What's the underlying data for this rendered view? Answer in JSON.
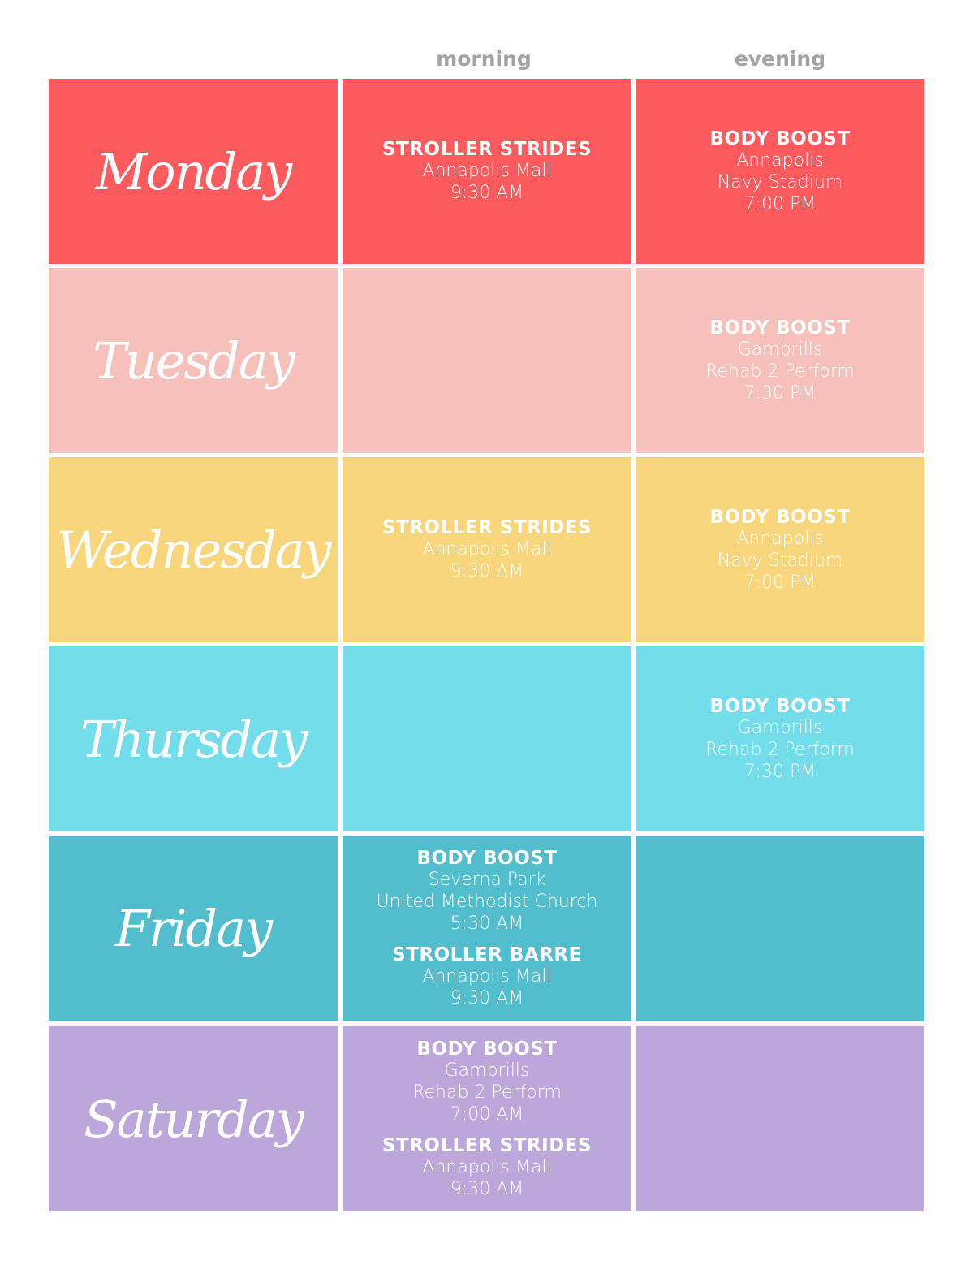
{
  "headers": {
    "morning": "morning",
    "evening": "evening"
  },
  "rows": [
    {
      "day": "Monday",
      "color": "#FF5A5E",
      "morning": [
        {
          "title": "STROLLER STRIDES",
          "lines": [
            "Annapolis Mall",
            "9:30 AM"
          ]
        }
      ],
      "evening": [
        {
          "title": "BODY BOOST",
          "lines": [
            "Annapolis",
            "Navy Stadium",
            "7:00 PM"
          ]
        }
      ]
    },
    {
      "day": "Tuesday",
      "color": "#F6C1BA",
      "morning": [],
      "evening": [
        {
          "title": "BODY BOOST",
          "lines": [
            "Gambrills",
            "Rehab 2 Perform",
            "7:30 PM"
          ]
        }
      ]
    },
    {
      "day": "Wednesday",
      "color": "#F9D67C",
      "morning": [
        {
          "title": "STROLLER STRIDES",
          "lines": [
            "Annapolis Mall",
            "9:30 AM"
          ]
        }
      ],
      "evening": [
        {
          "title": "BODY BOOST",
          "lines": [
            "Annapolis",
            "Navy Stadium",
            "7:00 PM"
          ]
        }
      ]
    },
    {
      "day": "Thursday",
      "color": "#74DDEC",
      "morning": [],
      "evening": [
        {
          "title": "BODY BOOST",
          "lines": [
            "Gambrills",
            "Rehab 2 Perform",
            "7:30 PM"
          ]
        }
      ]
    },
    {
      "day": "Friday",
      "color": "#52BDCC",
      "morning": [
        {
          "title": "BODY BOOST",
          "lines": [
            "Severna Park",
            "United Methodist Church",
            "5:30 AM"
          ]
        },
        {
          "title": "STROLLER BARRE",
          "lines": [
            "Annapolis Mall",
            "9:30 AM"
          ]
        }
      ],
      "evening": []
    },
    {
      "day": "Saturday",
      "color": "#BBA7DA",
      "morning": [
        {
          "title": "BODY BOOST",
          "lines": [
            "Gambrills",
            "Rehab 2 Perform",
            "7:00 AM"
          ]
        },
        {
          "title": "STROLLER STRIDES",
          "lines": [
            "Annapolis Mall",
            "9:30 AM"
          ]
        }
      ],
      "evening": []
    }
  ]
}
